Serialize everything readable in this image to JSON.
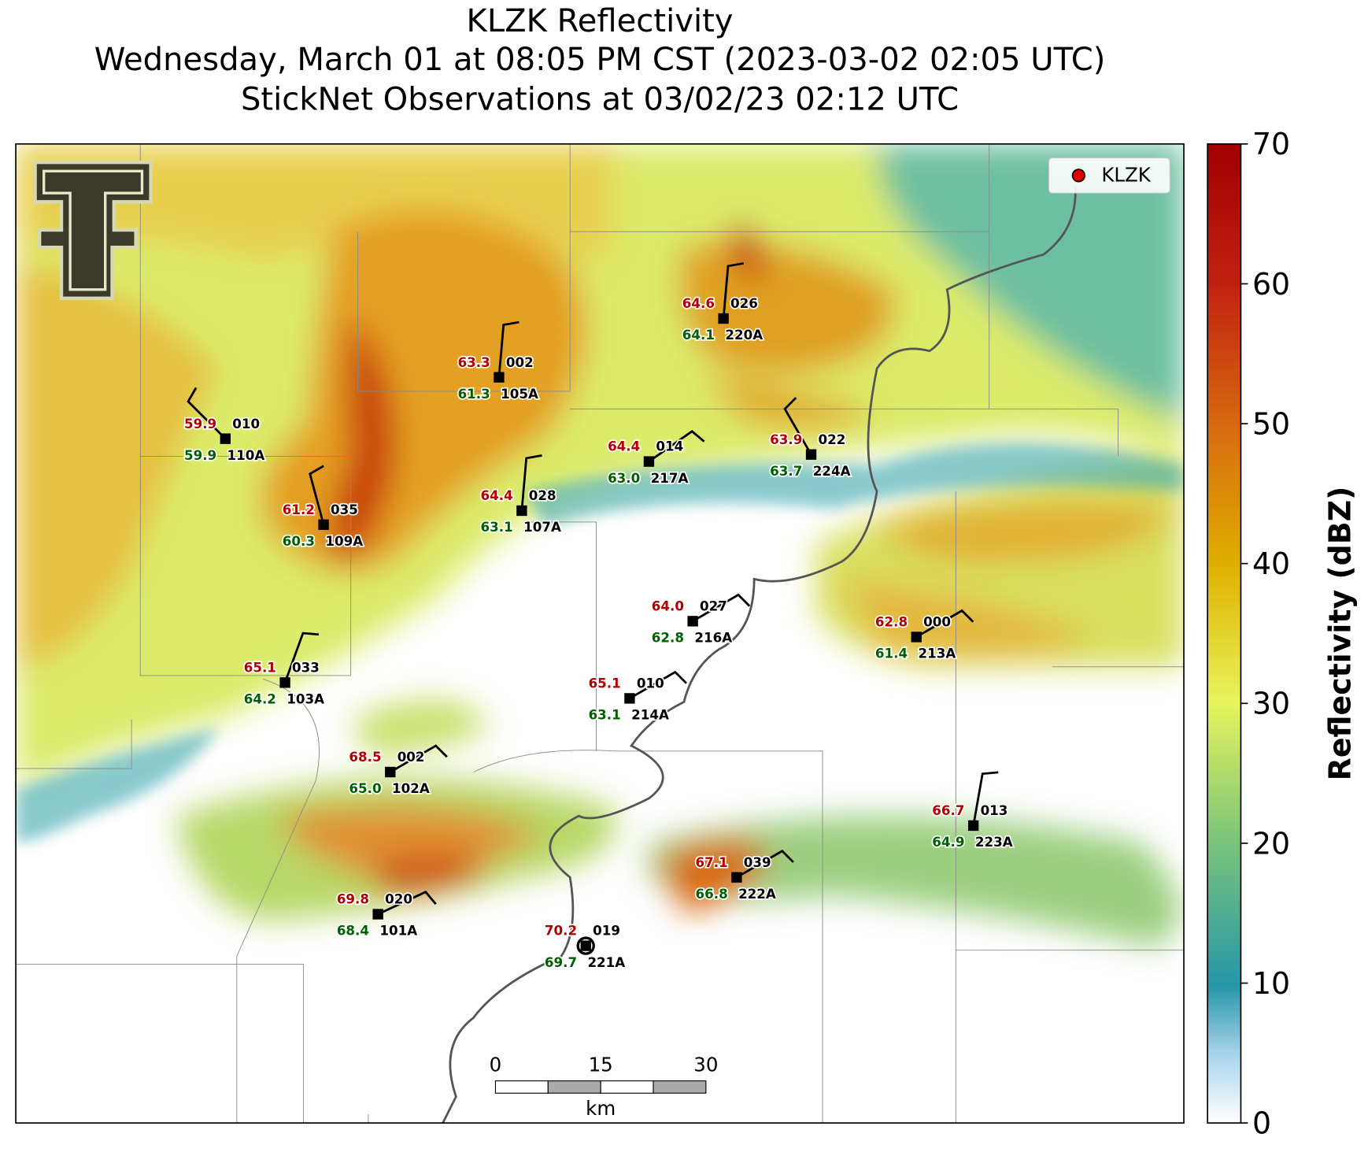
{
  "title": [
    "KLZK Reflectivity",
    "Wednesday, March 01 at 08:05 PM CST (2023-03-02 02:05 UTC)",
    "StickNet Observations at 03/02/23 02:12 UTC"
  ],
  "legend": "KLZK",
  "colorbar": {
    "label": "Reflectivity (dBZ)",
    "range": [
      0,
      70
    ],
    "ticks": [
      0,
      10,
      20,
      30,
      40,
      50,
      60,
      70
    ]
  },
  "scale_bar": {
    "ticks": [
      "0",
      "15",
      "30"
    ],
    "unit": "km"
  },
  "stations": [
    {
      "id": "110A",
      "temp": "59.9",
      "dew": "59.9",
      "code": "010"
    },
    {
      "id": "109A",
      "temp": "61.2",
      "dew": "60.3",
      "code": "035"
    },
    {
      "id": "105A",
      "temp": "63.3",
      "dew": "61.3",
      "code": "002"
    },
    {
      "id": "107A",
      "temp": "64.4",
      "dew": "63.1",
      "code": "028"
    },
    {
      "id": "217A",
      "temp": "64.4",
      "dew": "63.0",
      "code": "014"
    },
    {
      "id": "220A",
      "temp": "64.6",
      "dew": "64.1",
      "code": "026"
    },
    {
      "id": "224A",
      "temp": "63.9",
      "dew": "63.7",
      "code": "022"
    },
    {
      "id": "216A",
      "temp": "64.0",
      "dew": "62.8",
      "code": "027"
    },
    {
      "id": "213A",
      "temp": "62.8",
      "dew": "61.4",
      "code": "000"
    },
    {
      "id": "214A",
      "temp": "65.1",
      "dew": "63.1",
      "code": "010"
    },
    {
      "id": "103A",
      "temp": "65.1",
      "dew": "64.2",
      "code": "033"
    },
    {
      "id": "102A",
      "temp": "68.5",
      "dew": "65.0",
      "code": "002"
    },
    {
      "id": "101A",
      "temp": "69.8",
      "dew": "68.4",
      "code": "020"
    },
    {
      "id": "221A",
      "temp": "70.2",
      "dew": "69.7",
      "code": "019"
    },
    {
      "id": "222A",
      "temp": "67.1",
      "dew": "66.8",
      "code": "039"
    },
    {
      "id": "223A",
      "temp": "66.7",
      "dew": "64.9",
      "code": "013"
    }
  ]
}
